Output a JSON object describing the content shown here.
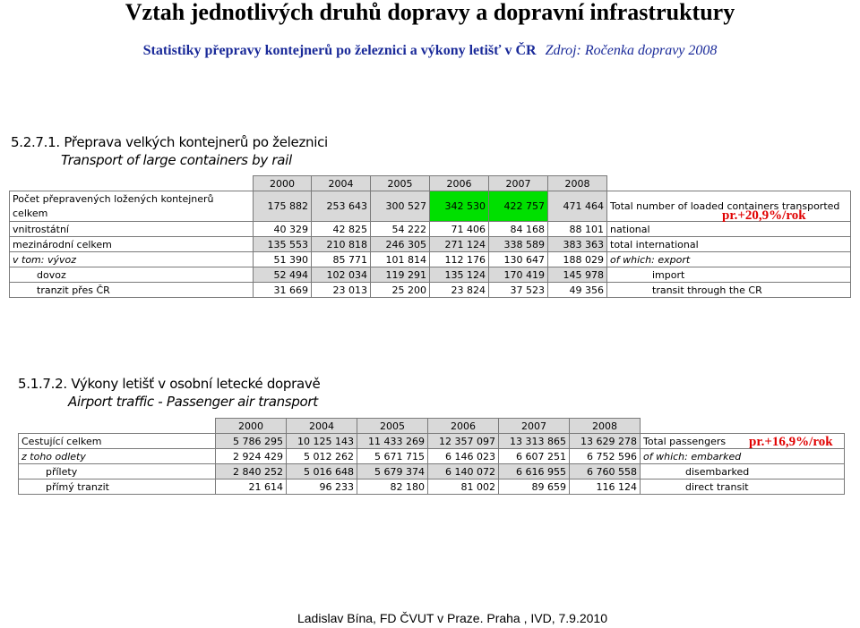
{
  "title": "Vztah jednotlivých druhů dopravy a dopravní infrastruktury",
  "subtitle": {
    "main": "Statistiky přepravy kontejnerů po železnici a výkony letišť v ČR",
    "source": "Zdroj: Ročenka dopravy 2008"
  },
  "rail": {
    "heading_cz": "5.2.7.1. Přeprava velkých kontejnerů po železnici",
    "heading_en": "Transport of large containers by rail",
    "years": [
      "2000",
      "2004",
      "2005",
      "2006",
      "2007",
      "2008"
    ],
    "growth": "pr.+20,9%/rok",
    "rows": [
      {
        "label": "Počet přepravených ložených kontejnerů celkem",
        "values": [
          "175 882",
          "253 643",
          "300 527",
          "342 530",
          "422 757",
          "471 464"
        ],
        "en": "Total number of loaded containers transported"
      },
      {
        "label": "vnitrostátní",
        "values": [
          "40 329",
          "42 825",
          "54 222",
          "71 406",
          "84 168",
          "88 101"
        ],
        "en": "national"
      },
      {
        "label": "mezinárodní celkem",
        "values": [
          "135 553",
          "210 818",
          "246 305",
          "271 124",
          "338 589",
          "383 363"
        ],
        "en": "total international"
      },
      {
        "label": "v tom: vývoz",
        "values": [
          "51 390",
          "85 771",
          "101 814",
          "112 176",
          "130 647",
          "188 029"
        ],
        "en": "of which: export"
      },
      {
        "label": "dovoz",
        "values": [
          "52 494",
          "102 034",
          "119 291",
          "135 124",
          "170 419",
          "145 978"
        ],
        "en": "import"
      },
      {
        "label": "tranzit přes ČR",
        "values": [
          "31 669",
          "23 013",
          "25 200",
          "23 824",
          "37 523",
          "49 356"
        ],
        "en": "transit through the CR"
      }
    ]
  },
  "air": {
    "heading_cz": "5.1.7.2. Výkony letišť v osobní letecké dopravě",
    "heading_en": "Airport traffic - Passenger air transport",
    "years": [
      "2000",
      "2004",
      "2005",
      "2006",
      "2007",
      "2008"
    ],
    "growth": "pr.+16,9%/rok",
    "rows": [
      {
        "label": "Cestující celkem",
        "values": [
          "5 786 295",
          "10 125 143",
          "11 433 269",
          "12 357 097",
          "13 313 865",
          "13 629 278"
        ],
        "en": "Total passengers"
      },
      {
        "label": "z toho odlety",
        "values": [
          "2 924 429",
          "5 012 262",
          "5 671 715",
          "6 146 023",
          "6 607 251",
          "6 752 596"
        ],
        "en": "of which: embarked"
      },
      {
        "label": "přílety",
        "values": [
          "2 840 252",
          "5 016 648",
          "5 679 374",
          "6 140 072",
          "6 616 955",
          "6 760 558"
        ],
        "en": "disembarked"
      },
      {
        "label": "přímý tranzit",
        "values": [
          "21 614",
          "96 233",
          "82 180",
          "81 002",
          "89 659",
          "116 124"
        ],
        "en": "direct transit"
      }
    ]
  },
  "footer": "Ladislav Bína, FD ČVUT v Praze. Praha , IVD, 7.9.2010"
}
